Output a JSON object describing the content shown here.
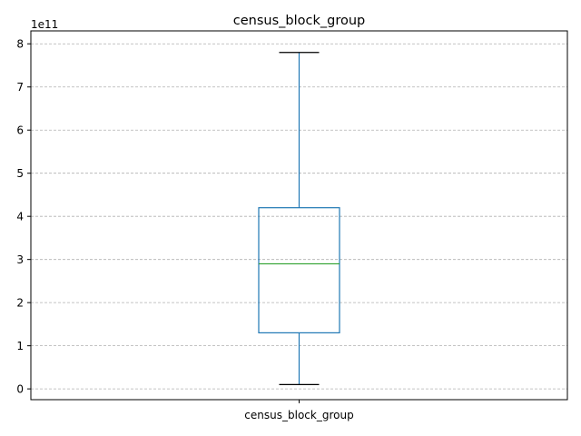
{
  "chart_data": {
    "type": "box",
    "title": "census_block_group",
    "categories": [
      "census_block_group"
    ],
    "scale_label": "1e11",
    "ylim": [
      -0.25,
      8.3
    ],
    "yticks": [
      0,
      1,
      2,
      3,
      4,
      5,
      6,
      7,
      8
    ],
    "grid": true,
    "grid_style": "dashed",
    "boxes": [
      {
        "whisker_low": 0.1,
        "q1": 1.3,
        "median": 2.9,
        "q3": 4.2,
        "whisker_high": 7.8
      }
    ],
    "colors": {
      "box": "#1f77b4",
      "median": "#2ca02c",
      "whisker_cap": "#000000",
      "grid": "#b0b0b0"
    }
  }
}
